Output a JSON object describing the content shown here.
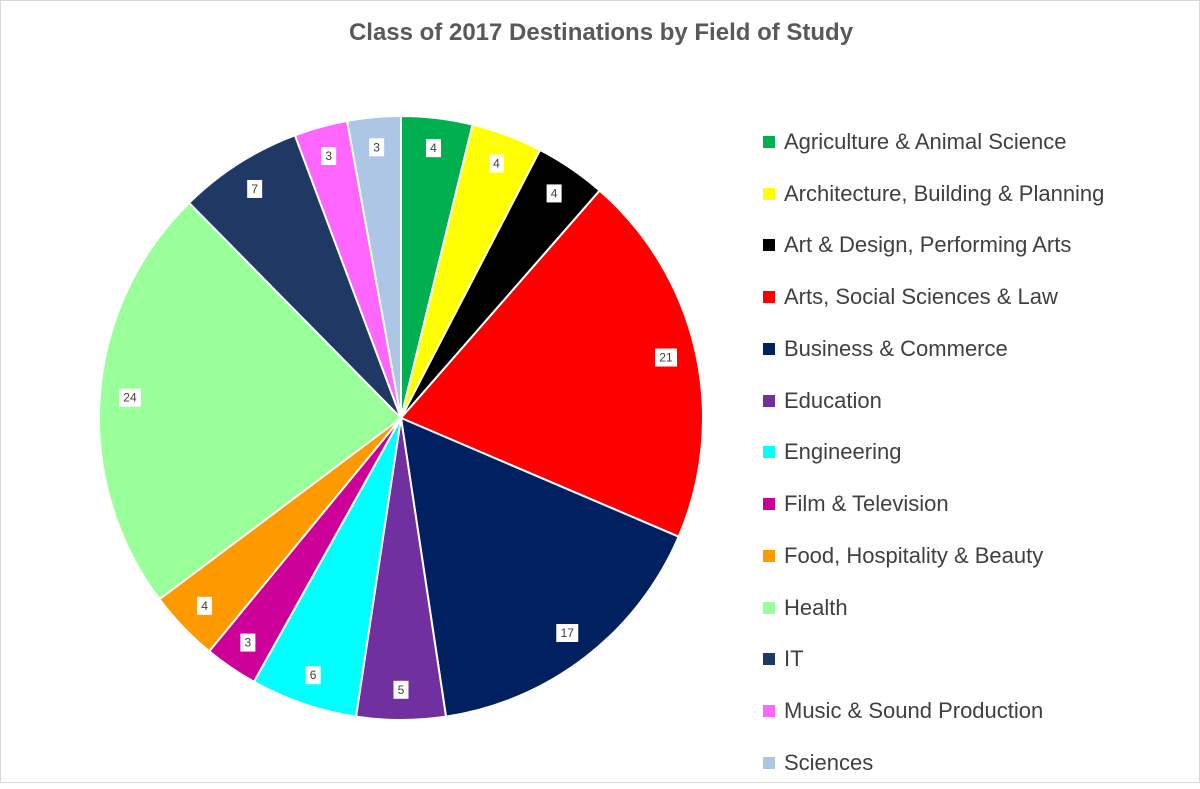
{
  "chart_data": {
    "type": "pie",
    "title": "Class of 2017 Destinations by Field of Study",
    "legend_position": "right",
    "slices": [
      {
        "label": "Agriculture & Animal Science",
        "value": 4,
        "color": "#00b050"
      },
      {
        "label": "Architecture, Building & Planning",
        "value": 4,
        "color": "#ffff00"
      },
      {
        "label": "Art & Design, Performing Arts",
        "value": 4,
        "color": "#000000"
      },
      {
        "label": "Arts, Social Sciences & Law",
        "value": 21,
        "color": "#ff0000"
      },
      {
        "label": "Business & Commerce",
        "value": 17,
        "color": "#002060"
      },
      {
        "label": "Education",
        "value": 5,
        "color": "#7030a0"
      },
      {
        "label": "Engineering",
        "value": 6,
        "color": "#00ffff"
      },
      {
        "label": "Film & Television",
        "value": 3,
        "color": "#cc0099"
      },
      {
        "label": "Food, Hospitality & Beauty",
        "value": 4,
        "color": "#ff9900"
      },
      {
        "label": "Health",
        "value": 24,
        "color": "#99ff99"
      },
      {
        "label": "IT",
        "value": 7,
        "color": "#1f3864"
      },
      {
        "label": "Music & Sound Production",
        "value": 3,
        "color": "#ff66ff"
      },
      {
        "label": "Sciences",
        "value": 3,
        "color": "#adc6e5"
      }
    ]
  }
}
